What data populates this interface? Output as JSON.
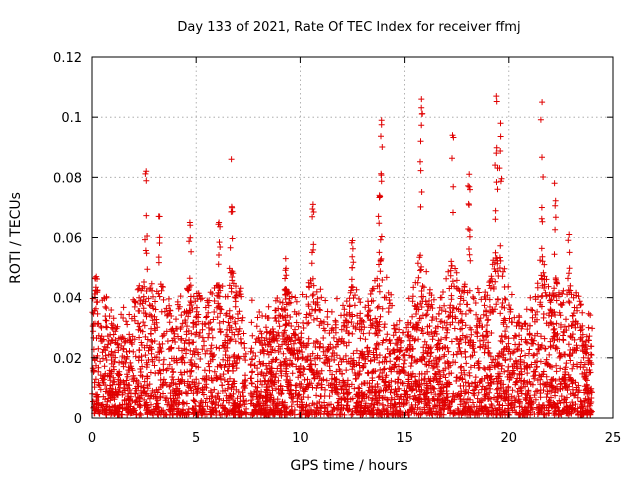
{
  "chart_data": {
    "type": "scatter",
    "title": "Day 133 of 2021, Rate Of TEC Index for receiver ffmj",
    "xlabel": "GPS time / hours",
    "ylabel": "ROTI / TECUs",
    "xlim": [
      0,
      25
    ],
    "ylim": [
      0,
      0.12
    ],
    "x_ticks": [
      0,
      5,
      10,
      15,
      20,
      25
    ],
    "x_tick_labels": [
      "0",
      "5",
      "10",
      "15",
      "20",
      "25"
    ],
    "y_ticks": [
      0,
      0.02,
      0.04,
      0.06,
      0.08,
      0.1,
      0.12
    ],
    "y_tick_labels": [
      "0",
      "0.02",
      "0.04",
      "0.06",
      "0.08",
      "0.1",
      "0.12"
    ],
    "grid": true,
    "marker": "plus",
    "color": "#e00000",
    "series": [
      {
        "name": "ROTI",
        "bulk_envelope": {
          "x_range": [
            0,
            24
          ],
          "gap_hours": [
            7.4,
            7.6
          ],
          "typical_max": 0.04,
          "min": 0.001
        },
        "peaks": [
          {
            "x": 0.2,
            "y": 0.047
          },
          {
            "x": 2.6,
            "y": 0.082
          },
          {
            "x": 3.2,
            "y": 0.067
          },
          {
            "x": 4.7,
            "y": 0.065
          },
          {
            "x": 6.1,
            "y": 0.065
          },
          {
            "x": 6.7,
            "y": 0.086
          },
          {
            "x": 9.3,
            "y": 0.053
          },
          {
            "x": 10.6,
            "y": 0.071
          },
          {
            "x": 12.5,
            "y": 0.059
          },
          {
            "x": 13.8,
            "y": 0.074
          },
          {
            "x": 13.9,
            "y": 0.099
          },
          {
            "x": 15.8,
            "y": 0.106
          },
          {
            "x": 17.3,
            "y": 0.094
          },
          {
            "x": 18.1,
            "y": 0.081
          },
          {
            "x": 19.4,
            "y": 0.107
          },
          {
            "x": 19.6,
            "y": 0.098
          },
          {
            "x": 21.6,
            "y": 0.105
          },
          {
            "x": 22.2,
            "y": 0.078
          },
          {
            "x": 22.9,
            "y": 0.061
          }
        ]
      }
    ]
  }
}
